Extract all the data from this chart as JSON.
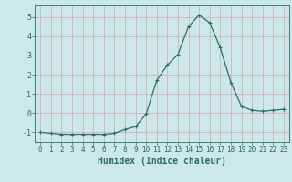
{
  "x": [
    0,
    1,
    2,
    3,
    4,
    5,
    6,
    7,
    8,
    9,
    10,
    11,
    12,
    13,
    14,
    15,
    16,
    17,
    18,
    19,
    20,
    21,
    22,
    23
  ],
  "y": [
    -1.0,
    -1.05,
    -1.1,
    -1.1,
    -1.1,
    -1.1,
    -1.1,
    -1.05,
    -0.85,
    -0.7,
    -0.05,
    1.7,
    2.5,
    3.05,
    4.5,
    5.1,
    4.7,
    3.4,
    1.6,
    0.35,
    0.15,
    0.1,
    0.15,
    0.2
  ],
  "line_color": "#2a6e65",
  "marker": "+",
  "marker_size": 3,
  "marker_linewidth": 0.8,
  "bg_color": "#cce8e8",
  "grid_color": "#d4a8a8",
  "xlabel": "Humidex (Indice chaleur)",
  "xlabel_fontsize": 7,
  "ylabel_ticks": [
    -1,
    0,
    1,
    2,
    3,
    4,
    5
  ],
  "xlim": [
    -0.5,
    23.5
  ],
  "ylim": [
    -1.5,
    5.6
  ],
  "tick_color": "#2a6e65",
  "spine_color": "#2a6e65",
  "tick_fontsize": 5.5,
  "line_width": 0.9
}
